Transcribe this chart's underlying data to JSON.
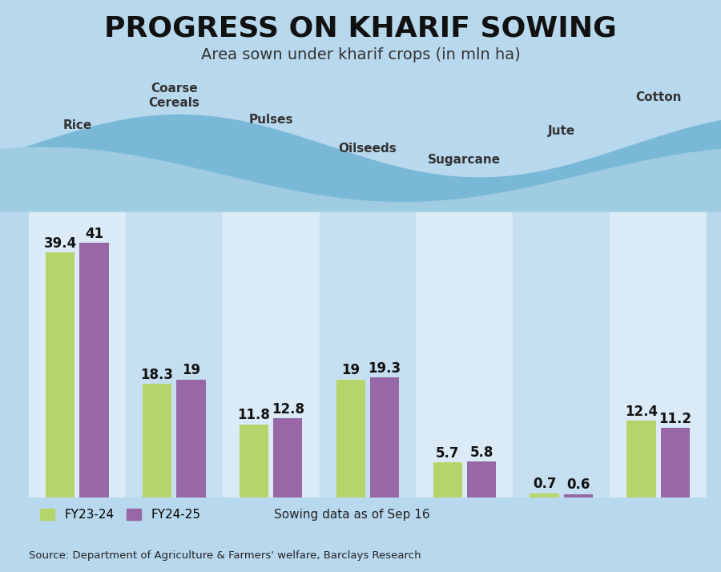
{
  "title": "PROGRESS ON KHARIF SOWING",
  "subtitle": "Area sown under kharif crops (in mln ha)",
  "categories": [
    "Rice",
    "Coarse\nCereals",
    "Pulses",
    "Oilseeds",
    "Sugarcane",
    "Jute",
    "Cotton"
  ],
  "fy23_24": [
    39.4,
    18.3,
    11.8,
    19.0,
    5.7,
    0.7,
    12.4
  ],
  "fy24_25": [
    41.0,
    19.0,
    12.8,
    19.3,
    5.8,
    0.6,
    11.2
  ],
  "color_fy23": "#b5d56a",
  "color_fy24": "#9768a5",
  "bg_color": "#b8d8ed",
  "stripe_light": "#daeaf6",
  "stripe_dark": "#c5dff0",
  "wave_color1": "#7ab8d8",
  "wave_color2": "#9fcce0",
  "source_text": "Source: Department of Agriculture & Farmers' welfare, Barclays Research",
  "legend_note": "Sowing data as of Sep 16",
  "ylim_max": 46,
  "title_fontsize": 26,
  "subtitle_fontsize": 14,
  "label_fontsize": 11,
  "value_fontsize": 12
}
